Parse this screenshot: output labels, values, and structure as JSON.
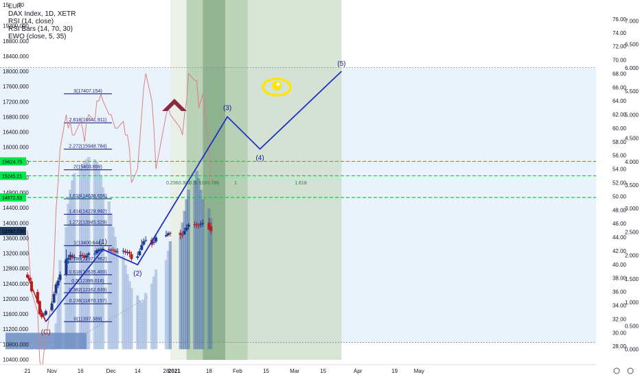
{
  "legend": {
    "currency": "EUR",
    "title": "DAX Index, 1D, XETR",
    "rsi": "RSI (14, close)",
    "rsi_bars": "RSI Bars (14, 70, 30)",
    "ewo": "EWO (close, 5, 35)"
  },
  "top_left_ticks": [
    "15",
    "70"
  ],
  "price_axis": {
    "labels": [
      "19200.000",
      "18800.000",
      "18400.000",
      "18000.000",
      "17600.000",
      "17200.000",
      "16800.000",
      "16400.000",
      "16000.000",
      "15600.000",
      "15200.000",
      "14800.000",
      "14400.000",
      "14000.000",
      "13600.000",
      "13200.000",
      "12800.000",
      "12400.000",
      "12000.000",
      "11600.000",
      "11200.000",
      "10800.000",
      "10400.000"
    ],
    "range": [
      10300,
      19700
    ]
  },
  "price_tags": [
    {
      "text": "15624.75",
      "value": 15624.75,
      "color": "#00e64d"
    },
    {
      "text": "15245.21",
      "value": 15245.21,
      "color": "#00e64d"
    },
    {
      "text": "14672.53",
      "value": 14672.53,
      "color": "#00e64d"
    },
    {
      "text": "13787.730",
      "value": 13787.73,
      "color": "#1e3a5f"
    }
  ],
  "rsi_axis": {
    "labels": [
      "76.00",
      "74.00",
      "72.00",
      "70.00",
      "68.00",
      "66.00",
      "64.00",
      "62.00",
      "60.00",
      "58.00",
      "56.00",
      "54.00",
      "52.00",
      "50.00",
      "48.00",
      "46.00",
      "44.00",
      "42.00",
      "40.00",
      "38.00",
      "36.00",
      "34.00",
      "32.00",
      "30.00",
      "28.00"
    ],
    "range": [
      25.5,
      77.8
    ]
  },
  "ewo_axis": {
    "labels": [
      "7.000",
      "6.500",
      "6.000",
      "5.500",
      "5.000",
      "4.500",
      "4.000",
      "3.500",
      "3.000",
      "2.500",
      "2.000",
      "1.500",
      "1.000",
      "0.500",
      "0.000"
    ],
    "range": [
      -0.3,
      7.3
    ]
  },
  "time_axis": {
    "labels": [
      "21",
      "Nov",
      "16",
      "Dec",
      "14",
      "28",
      "2021",
      "18",
      "Feb",
      "15",
      "Mar",
      "15",
      "Apr",
      "19",
      "May"
    ],
    "bold": [
      "2021"
    ]
  },
  "fib_extension": [
    {
      "ratio": "0(11397.389)",
      "price": 11397.389
    },
    {
      "ratio": "0.236(11870.157)",
      "price": 11870.157
    },
    {
      "ratio": "0.382(12162.639)",
      "price": 12162.639
    },
    {
      "ratio": "0.5(12399.016)",
      "price": 12399.016
    },
    {
      "ratio": "0.618(12635.400)",
      "price": 12635.4
    },
    {
      "ratio": "0.786(12971.962)",
      "price": 12971.962
    },
    {
      "ratio": "1(13400.644)",
      "price": 13400.644
    },
    {
      "ratio": "1.272(13945.529)",
      "price": 13945.529
    },
    {
      "ratio": "1.414(14229.992)",
      "price": 14229.992
    },
    {
      "ratio": "1.618(14638.656)",
      "price": 14638.656
    },
    {
      "ratio": "2(15403.899)",
      "price": 15403.899
    },
    {
      "ratio": "2.272(15948.784)",
      "price": 15948.784
    },
    {
      "ratio": "2.618(16641.911)",
      "price": 16641.911
    },
    {
      "ratio": "3(17407.154)",
      "price": 17407.154
    }
  ],
  "fib_time_zones": [
    "0.236",
    "0.382",
    "0.5",
    "0.618",
    "0.786",
    "1",
    "1.618"
  ],
  "wave_labels": [
    "(C)",
    "(1)",
    "(2)",
    "(3)",
    "(4)",
    "(5)"
  ],
  "chart_data": {
    "type": "candlestick",
    "title": "DAX Index, 1D, XETR",
    "xlabel": "",
    "ylabel": "",
    "price": {
      "dates": [
        "2020-10-21",
        "2020-10-22",
        "2020-10-23",
        "2020-10-26",
        "2020-10-27",
        "2020-10-28",
        "2020-10-29",
        "2020-10-30",
        "2020-11-02",
        "2020-11-03",
        "2020-11-04",
        "2020-11-05",
        "2020-11-06",
        "2020-11-09",
        "2020-11-10",
        "2020-11-11",
        "2020-11-12",
        "2020-11-13",
        "2020-11-16",
        "2020-11-17",
        "2020-11-18",
        "2020-11-19",
        "2020-11-20",
        "2020-11-23",
        "2020-11-24",
        "2020-11-25",
        "2020-11-26",
        "2020-11-27",
        "2020-11-30",
        "2020-12-01",
        "2020-12-02",
        "2020-12-03",
        "2020-12-04",
        "2020-12-07",
        "2020-12-08",
        "2020-12-09",
        "2020-12-10",
        "2020-12-11",
        "2020-12-14",
        "2020-12-15",
        "2020-12-16",
        "2020-12-17",
        "2020-12-18",
        "2020-12-21",
        "2020-12-22",
        "2020-12-23",
        "2020-12-28",
        "2020-12-29",
        "2020-12-30",
        "2021-01-04",
        "2021-01-05",
        "2021-01-06",
        "2021-01-07",
        "2021-01-08",
        "2021-01-11",
        "2021-01-12",
        "2021-01-13",
        "2021-01-14",
        "2021-01-15",
        "2021-01-18",
        "2021-01-19"
      ],
      "open": [
        12640,
        12560,
        12460,
        12180,
        11940,
        11620,
        11560,
        11580,
        11700,
        11900,
        12150,
        12350,
        12500,
        12650,
        13040,
        13100,
        13150,
        13080,
        13120,
        13160,
        13140,
        13100,
        13160,
        13180,
        13200,
        13250,
        13280,
        13300,
        13300,
        13280,
        13300,
        13270,
        13240,
        13250,
        13260,
        13210,
        13240,
        13180,
        13080,
        13150,
        13290,
        13430,
        13540,
        13560,
        13480,
        13510,
        13650,
        13680,
        13740,
        13730,
        13690,
        13700,
        13800,
        13900,
        13970,
        13960,
        13940,
        13950,
        13980,
        14000,
        13910
      ],
      "high": [
        12700,
        12620,
        12560,
        12250,
        11960,
        11680,
        11640,
        11720,
        11940,
        12190,
        12440,
        12560,
        12720,
        13300,
        13160,
        13240,
        13200,
        13180,
        13260,
        13220,
        13200,
        13200,
        13240,
        13280,
        13330,
        13350,
        13360,
        13380,
        13360,
        13340,
        13360,
        13320,
        13330,
        13340,
        13320,
        13300,
        13290,
        13250,
        13240,
        13330,
        13570,
        13600,
        13650,
        13620,
        13590,
        13720,
        13800,
        13780,
        13780,
        13830,
        13780,
        13880,
        13960,
        14000,
        14050,
        14030,
        14000,
        14060,
        14100,
        14130,
        14020
      ],
      "low": [
        12540,
        12420,
        12170,
        11860,
        11560,
        11470,
        11490,
        11550,
        11660,
        11880,
        12100,
        12280,
        12440,
        12600,
        12920,
        13020,
        13040,
        13010,
        13060,
        13080,
        13060,
        13020,
        13100,
        13110,
        13160,
        13200,
        13230,
        13240,
        13230,
        13220,
        13210,
        13180,
        13190,
        13180,
        13160,
        13140,
        13100,
        12990,
        13030,
        13120,
        13270,
        13400,
        13490,
        13360,
        13420,
        13470,
        13620,
        13640,
        13650,
        13560,
        13600,
        13680,
        13780,
        13830,
        13880,
        13860,
        13860,
        13880,
        13900,
        13810,
        13700
      ],
      "close": [
        12560,
        12480,
        12200,
        11900,
        11600,
        11520,
        11580,
        11680,
        11880,
        12130,
        12380,
        12480,
        12640,
        13050,
        13080,
        13160,
        13090,
        13100,
        13150,
        13140,
        13090,
        13150,
        13200,
        13190,
        13280,
        13300,
        13310,
        13320,
        13280,
        13290,
        13280,
        13240,
        13250,
        13270,
        13220,
        13230,
        13190,
        13050,
        13120,
        13260,
        13420,
        13520,
        13550,
        13430,
        13500,
        13620,
        13680,
        13730,
        13720,
        13690,
        13680,
        13790,
        13880,
        13960,
        13950,
        13950,
        13930,
        13980,
        14000,
        13830,
        13787.73
      ]
    },
    "projection": {
      "name": "",
      "points": [
        {
          "date": "2020-10-30",
          "value": 11397,
          "label": "(C)"
        },
        {
          "date": "2020-11-27",
          "value": 13300,
          "label": "(1)"
        },
        {
          "date": "2020-12-14",
          "value": 12900,
          "label": "(2)"
        },
        {
          "date": "2021-01-27",
          "value": 16800,
          "label": "(3)"
        },
        {
          "date": "2021-02-12",
          "value": 15950,
          "label": "(4)"
        },
        {
          "date": "2021-03-24",
          "value": 18000,
          "label": "(5)"
        }
      ]
    },
    "rsi": {
      "name": "RSI (14, close)",
      "dates": [
        "2020-10-21",
        "2020-10-22",
        "2020-10-23",
        "2020-10-26",
        "2020-10-27",
        "2020-10-28",
        "2020-10-29",
        "2020-10-30",
        "2020-11-02",
        "2020-11-03",
        "2020-11-04",
        "2020-11-05",
        "2020-11-06",
        "2020-11-09",
        "2020-11-10",
        "2020-11-11",
        "2020-11-12",
        "2020-11-13",
        "2020-11-16",
        "2020-11-17",
        "2020-11-18",
        "2020-11-19",
        "2020-11-20",
        "2020-11-23",
        "2020-11-24",
        "2020-11-25",
        "2020-11-26",
        "2020-11-27",
        "2020-11-30",
        "2020-12-01",
        "2020-12-02",
        "2020-12-03",
        "2020-12-04",
        "2020-12-07",
        "2020-12-08",
        "2020-12-09",
        "2020-12-10",
        "2020-12-11",
        "2020-12-14",
        "2020-12-15",
        "2020-12-16",
        "2020-12-17",
        "2020-12-18",
        "2020-12-21",
        "2020-12-22",
        "2020-12-23",
        "2020-12-28",
        "2020-12-29",
        "2020-12-30",
        "2021-01-04",
        "2021-01-05",
        "2021-01-06",
        "2021-01-07",
        "2021-01-08",
        "2021-01-11",
        "2021-01-12",
        "2021-01-13",
        "2021-01-14",
        "2021-01-15",
        "2021-01-18",
        "2021-01-19"
      ],
      "values": [
        45,
        40,
        36,
        33,
        26,
        24,
        27,
        29,
        35,
        40,
        48,
        52,
        57,
        62,
        60,
        61,
        59,
        59,
        61,
        60,
        58,
        61,
        62,
        61,
        64,
        64,
        65,
        64,
        62,
        62,
        61,
        60,
        60,
        61,
        59,
        59,
        57,
        52,
        54,
        58,
        62,
        66,
        68,
        64,
        60,
        54,
        62,
        63,
        62,
        60,
        59,
        62,
        64,
        68,
        67,
        67,
        63,
        64,
        65,
        57,
        52
      ]
    },
    "ewo": {
      "name": "EWO (close, 5, 35)",
      "values": [
        0.0,
        0.0,
        0.0,
        0.0,
        0.0,
        0.0,
        0.0,
        0.0,
        0.0,
        0.0,
        0.55,
        1.2,
        1.9,
        2.6,
        3.1,
        3.4,
        3.6,
        3.75,
        3.85,
        3.95,
        4.0,
        4.05,
        4.1,
        4.05,
        4.0,
        3.85,
        3.7,
        3.45,
        3.15,
        2.9,
        2.6,
        2.4,
        2.15,
        2.0,
        1.8,
        1.6,
        1.45,
        1.3,
        1.15,
        1.05,
        1.0,
        1.05,
        1.2,
        1.4,
        1.55,
        1.7,
        1.9,
        2.1,
        2.3,
        2.5,
        2.7,
        2.95,
        3.2,
        3.4,
        3.6,
        3.8,
        3.65,
        3.4,
        3.2,
        3.0,
        2.8
      ]
    },
    "price_ylim": [
      10300,
      19700
    ],
    "rsi_ylim": [
      25.5,
      77.8
    ],
    "ewo_ylim": [
      -0.3,
      7.3
    ],
    "grid": false,
    "legend_position": "top-left"
  },
  "colors": {
    "up": "#1a3a8a",
    "down": "#b71c1c",
    "projection": "#1f2fbf",
    "rsi_line": "#d98080",
    "ewo_bar": "#a9bfe0",
    "ewo_bar_dark": "#5577b0",
    "fib_line": "#1a237e",
    "green_dashed": "#00cc44",
    "highlight": "#eaf3fc",
    "zone_light": "#e6ede0",
    "zone_mid": "#a7c6a0",
    "zone_dark": "#6f9c6c",
    "zone_future": "#cbdcc8",
    "eye": "#ffe600",
    "chevron": "#8b2a3f"
  }
}
